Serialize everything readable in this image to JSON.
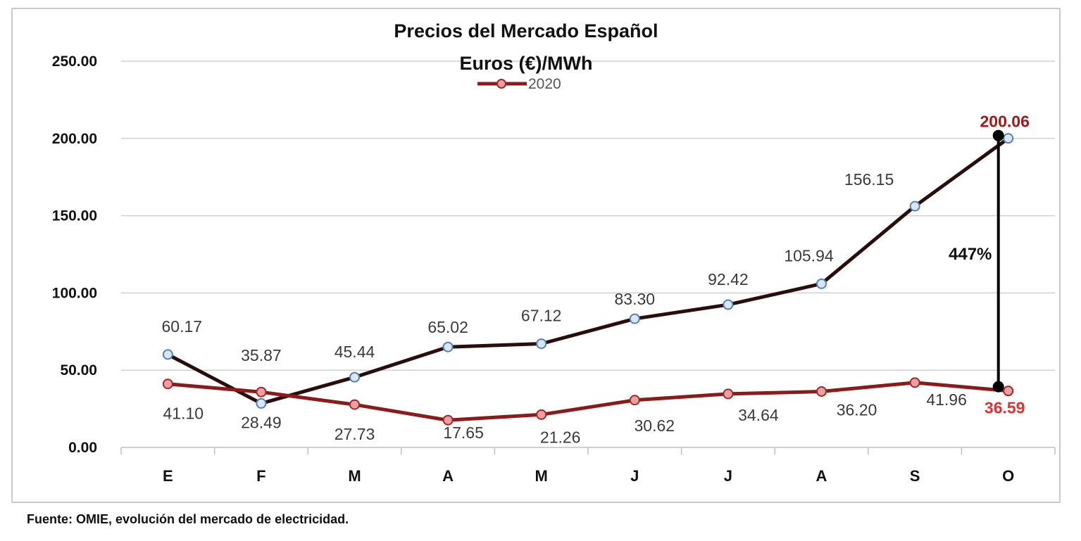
{
  "chart_data": {
    "type": "line",
    "title": "Precios del Mercado Español",
    "subtitle": "Euros (€)/MWh",
    "categories": [
      "E",
      "F",
      "M",
      "A",
      "M",
      "J",
      "J",
      "A",
      "S",
      "O"
    ],
    "ylim": [
      0,
      250
    ],
    "yticks": [
      "0.00",
      "50.00",
      "100.00",
      "150.00",
      "200.00",
      "250.00"
    ],
    "grid": true,
    "legend": {
      "placement": "top-center",
      "entries": [
        "2020"
      ]
    },
    "series": [
      {
        "values": [
          60.17,
          28.49,
          45.44,
          65.02,
          67.12,
          83.3,
          92.42,
          105.94,
          156.15,
          200.06
        ],
        "labels": [
          "60.17",
          "28.49",
          "45.44",
          "65.02",
          "67.12",
          "83.30",
          "92.42",
          "105.94",
          "156.15",
          "200.06"
        ],
        "line_color": "#2a0d0d",
        "marker_fill": "#dce6f2",
        "marker_stroke": "#4f81bd"
      },
      {
        "name": "2020",
        "values": [
          41.1,
          35.87,
          27.73,
          17.65,
          21.26,
          30.62,
          34.64,
          36.2,
          41.96,
          36.59
        ],
        "labels": [
          "41.10",
          "35.87",
          "27.73",
          "17.65",
          "21.26",
          "30.62",
          "34.64",
          "36.20",
          "41.96",
          "36.59"
        ],
        "line_color": "#8b1a1a",
        "marker_fill": "#e8a0a0",
        "marker_stroke": "#a0282a"
      }
    ],
    "annotations": {
      "pct_change": "447%",
      "highlight_top_color": "#a01818",
      "highlight_bottom_color": "#e03030"
    },
    "source": "Fuente: OMIE, evolución del mercado de electricidad."
  }
}
